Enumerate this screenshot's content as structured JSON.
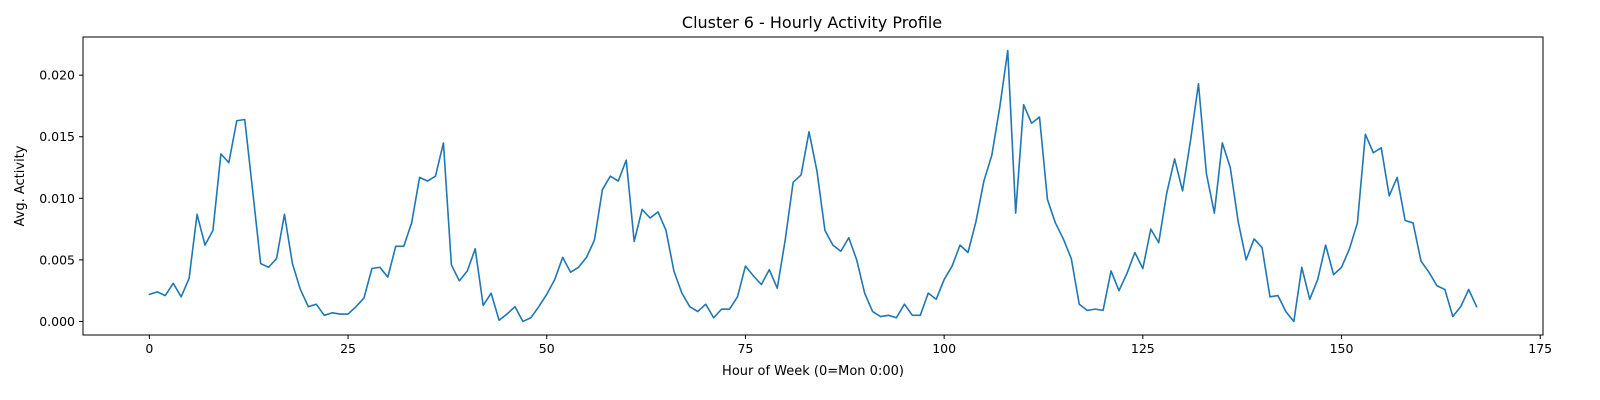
{
  "chart_data": {
    "type": "line",
    "title": "Cluster 6 - Hourly Activity Profile",
    "xlabel": "Hour of Week (0=Mon 0:00)",
    "ylabel": "Avg. Activity",
    "xlim": [
      -8.35,
      175.35
    ],
    "ylim": [
      -0.0011,
      0.0231
    ],
    "xticks": [
      0,
      25,
      50,
      75,
      100,
      125,
      150,
      175
    ],
    "xtick_labels": [
      "0",
      "25",
      "50",
      "75",
      "100",
      "125",
      "150",
      "175"
    ],
    "yticks": [
      0.0,
      0.005,
      0.01,
      0.015,
      0.02
    ],
    "ytick_labels": [
      "0.000",
      "0.005",
      "0.010",
      "0.015",
      "0.020"
    ],
    "grid": false,
    "series": [
      {
        "color": "#1f77b4",
        "x": [
          0,
          1,
          2,
          3,
          4,
          5,
          6,
          7,
          8,
          9,
          10,
          11,
          12,
          13,
          14,
          15,
          16,
          17,
          18,
          19,
          20,
          21,
          22,
          23,
          24,
          25,
          26,
          27,
          28,
          29,
          30,
          31,
          32,
          33,
          34,
          35,
          36,
          37,
          38,
          39,
          40,
          41,
          42,
          43,
          44,
          45,
          46,
          47,
          48,
          49,
          50,
          51,
          52,
          53,
          54,
          55,
          56,
          57,
          58,
          59,
          60,
          61,
          62,
          63,
          64,
          65,
          66,
          67,
          68,
          69,
          70,
          71,
          72,
          73,
          74,
          75,
          76,
          77,
          78,
          79,
          80,
          81,
          82,
          83,
          84,
          85,
          86,
          87,
          88,
          89,
          90,
          91,
          92,
          93,
          94,
          95,
          96,
          97,
          98,
          99,
          100,
          101,
          102,
          103,
          104,
          105,
          106,
          107,
          108,
          109,
          110,
          111,
          112,
          113,
          114,
          115,
          116,
          117,
          118,
          119,
          120,
          121,
          122,
          123,
          124,
          125,
          126,
          127,
          128,
          129,
          130,
          131,
          132,
          133,
          134,
          135,
          136,
          137,
          138,
          139,
          140,
          141,
          142,
          143,
          144,
          145,
          146,
          147,
          148,
          149,
          150,
          151,
          152,
          153,
          154,
          155,
          156,
          157,
          158,
          159,
          160,
          161,
          162,
          163,
          164,
          165,
          166,
          167
        ],
        "values": [
          0.0022,
          0.0024,
          0.0021,
          0.0031,
          0.002,
          0.0035,
          0.0087,
          0.0062,
          0.0074,
          0.0136,
          0.0129,
          0.0163,
          0.0164,
          0.0106,
          0.0047,
          0.0044,
          0.0051,
          0.0087,
          0.0047,
          0.0026,
          0.0012,
          0.0014,
          0.0005,
          0.0007,
          0.0006,
          0.0006,
          0.0012,
          0.0019,
          0.0043,
          0.0044,
          0.0036,
          0.0061,
          0.0061,
          0.008,
          0.0117,
          0.0114,
          0.0118,
          0.0145,
          0.0046,
          0.0033,
          0.0041,
          0.0059,
          0.0013,
          0.0023,
          0.0001,
          0.0006,
          0.0012,
          0.0,
          0.0003,
          0.0012,
          0.0022,
          0.0034,
          0.0052,
          0.004,
          0.0044,
          0.0052,
          0.0066,
          0.0107,
          0.0118,
          0.0114,
          0.0131,
          0.0065,
          0.0091,
          0.0084,
          0.0089,
          0.0074,
          0.0041,
          0.0023,
          0.0012,
          0.0008,
          0.0014,
          0.0003,
          0.001,
          0.001,
          0.002,
          0.0045,
          0.0037,
          0.003,
          0.0042,
          0.0027,
          0.0066,
          0.0113,
          0.0119,
          0.0154,
          0.0122,
          0.0074,
          0.0062,
          0.0057,
          0.0068,
          0.005,
          0.0023,
          0.0008,
          0.0004,
          0.0005,
          0.0003,
          0.0014,
          0.0005,
          0.0005,
          0.0023,
          0.0018,
          0.0034,
          0.0045,
          0.0062,
          0.0056,
          0.0081,
          0.0114,
          0.0135,
          0.0174,
          0.022,
          0.0088,
          0.0176,
          0.0161,
          0.0166,
          0.0099,
          0.008,
          0.0067,
          0.0051,
          0.0014,
          0.0009,
          0.001,
          0.0009,
          0.0041,
          0.0025,
          0.0039,
          0.0056,
          0.0043,
          0.0075,
          0.0064,
          0.0104,
          0.0132,
          0.0106,
          0.0147,
          0.0193,
          0.012,
          0.0088,
          0.0145,
          0.0125,
          0.0081,
          0.005,
          0.0067,
          0.006,
          0.002,
          0.0021,
          0.0008,
          0.0,
          0.0044,
          0.0018,
          0.0034,
          0.0062,
          0.0038,
          0.0044,
          0.0059,
          0.008,
          0.0152,
          0.0137,
          0.0141,
          0.0102,
          0.0117,
          0.0082,
          0.008,
          0.0049,
          0.004,
          0.0029,
          0.0026,
          0.0004,
          0.0012,
          0.0026,
          0.0012
        ]
      }
    ]
  }
}
